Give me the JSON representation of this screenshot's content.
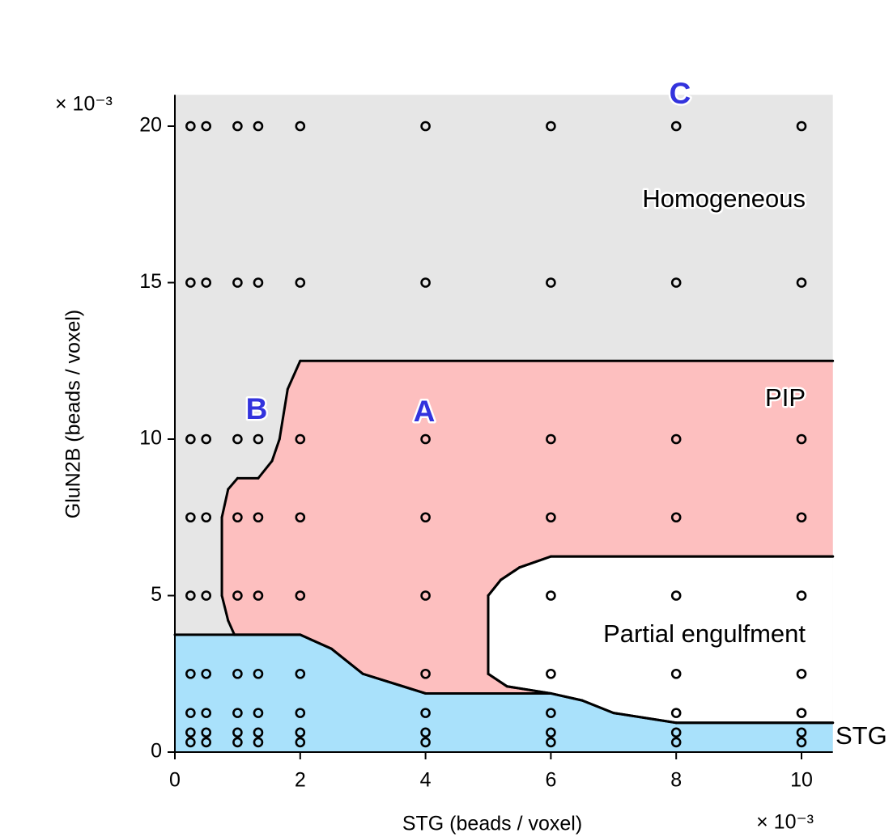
{
  "chart_data": {
    "type": "phase-diagram",
    "x_label": "STG (beads / voxel)",
    "y_label": "GluN2B (beads / voxel)",
    "x_offset_text": "× 10⁻³",
    "y_offset_text": "× 10⁻³",
    "xlim": [
      0,
      10.5
    ],
    "ylim": [
      0,
      21
    ],
    "xticks": [
      0,
      2,
      4,
      6,
      8,
      10
    ],
    "yticks": [
      0,
      5,
      10,
      15,
      20
    ],
    "regions": [
      {
        "name": "Homogeneous",
        "color": "#e6e6e6",
        "x": [
          0,
          10.5,
          10.5,
          0
        ],
        "y": [
          0,
          0,
          21,
          21
        ]
      },
      {
        "name": "PIP",
        "color": "#fdbfbf",
        "x": [
          0.95,
          0.85,
          0.75,
          0.75,
          0.85,
          1,
          1.33,
          1.55,
          1.67,
          1.8,
          2,
          10.5,
          10.5,
          6,
          5.5,
          5.2,
          5,
          5,
          5.3,
          6,
          4,
          3,
          2.5,
          2
        ],
        "y": [
          3.75,
          4.2,
          5,
          7.5,
          8.4,
          8.75,
          8.75,
          9.3,
          10,
          11.6,
          12.5,
          12.5,
          6.25,
          6.25,
          5.9,
          5.5,
          5,
          2.5,
          2.1,
          1.875,
          1.875,
          2.5,
          3.3,
          3.75
        ]
      },
      {
        "name": "Partial engulfment",
        "color": "#ffffff",
        "x": [
          10.5,
          6,
          5.5,
          5.2,
          5,
          5,
          5.3,
          6,
          6.5,
          7,
          8,
          10.5
        ],
        "y": [
          6.25,
          6.25,
          5.9,
          5.5,
          5,
          2.5,
          2.1,
          1.875,
          1.65,
          1.25,
          0.9375,
          0.9375
        ]
      },
      {
        "name": "STG",
        "color": "#a9e1fb",
        "x": [
          0,
          0,
          2,
          2.5,
          3,
          4,
          6,
          6.5,
          7,
          8,
          10.5,
          10.5
        ],
        "y": [
          0,
          3.75,
          3.75,
          3.3,
          2.5,
          1.875,
          1.875,
          1.65,
          1.25,
          0.9375,
          0.9375,
          0
        ]
      }
    ],
    "points": {
      "x": [
        0.25,
        0.5,
        1,
        1.33,
        2,
        4,
        6,
        8,
        10
      ],
      "y": [
        0.3125,
        0.625,
        1.25,
        2.5,
        5,
        7.5,
        10,
        15,
        20
      ]
    },
    "annotations": [
      "A",
      "B",
      "C"
    ]
  }
}
